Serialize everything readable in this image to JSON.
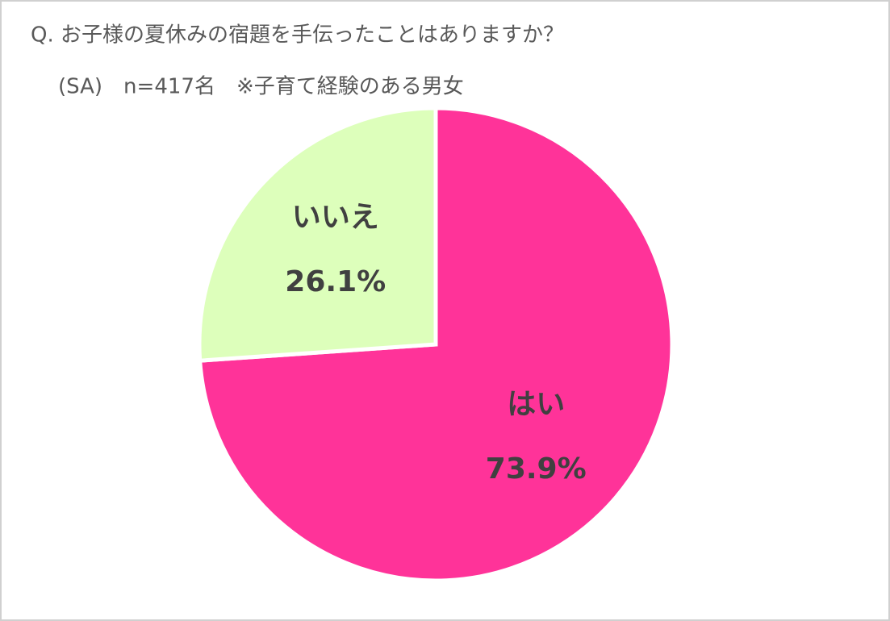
{
  "chart_data": {
    "type": "pie",
    "title": "Q. お子様の夏休みの宿題を手伝ったことはありますか？",
    "subtitle": "(SA)　n=417名　※子育て経験のある男女",
    "categories": [
      "はい",
      "いいえ"
    ],
    "values": [
      73.9,
      26.1
    ],
    "value_labels": [
      "73.9%",
      "26.1%"
    ],
    "colors": [
      "#ff3399",
      "#ddffbb"
    ]
  }
}
